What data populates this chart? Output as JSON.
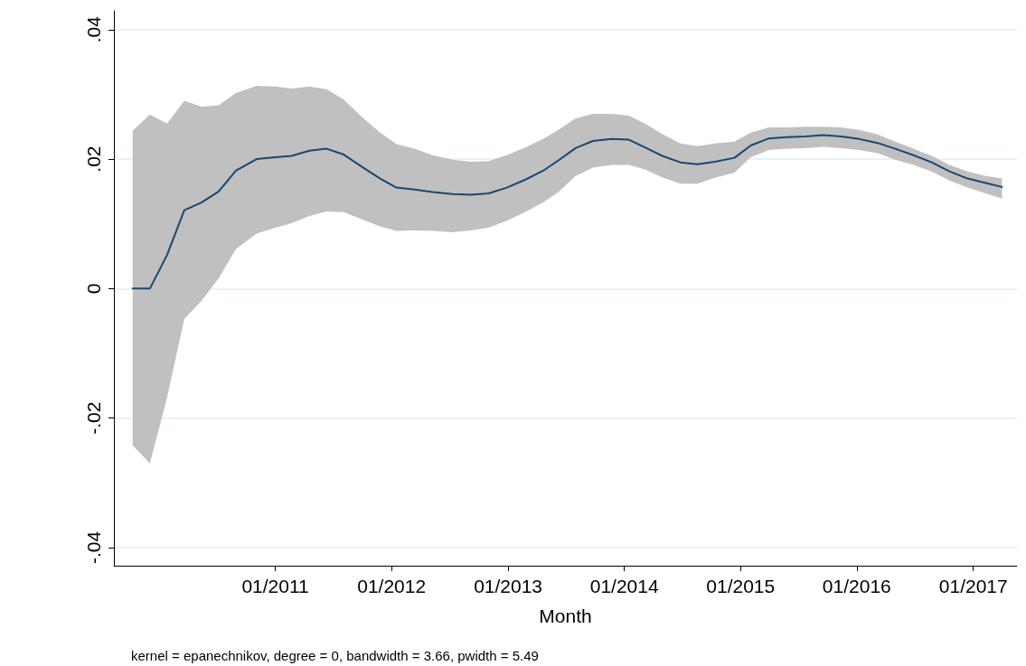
{
  "chart_data": {
    "type": "line",
    "xlabel": "Month",
    "annotations": [
      "kernel = epanechnikov, degree = 0, bandwidth = 3.66, pwidth = 5.49"
    ],
    "x": [
      "2009-10-10",
      "2009-12-03",
      "2010-01-26",
      "2010-03-21",
      "2010-05-14",
      "2010-07-07",
      "2010-08-30",
      "2010-11-03",
      "2011-01-01",
      "2011-02-21",
      "2011-04-18",
      "2011-06-11",
      "2011-08-04",
      "2011-09-30",
      "2011-11-26",
      "2012-01-16",
      "2012-03-13",
      "2012-05-09",
      "2012-07-11",
      "2012-09-06",
      "2012-11-01",
      "2012-12-28",
      "2013-02-23",
      "2013-04-21",
      "2013-06-08",
      "2013-08-01",
      "2013-09-24",
      "2013-11-22",
      "2014-01-15",
      "2014-03-07",
      "2014-04-30",
      "2014-06-26",
      "2014-08-19",
      "2014-10-12",
      "2014-12-13",
      "2015-02-02",
      "2015-03-31",
      "2015-05-27",
      "2015-07-23",
      "2015-09-18",
      "2015-11-13",
      "2016-01-09",
      "2016-03-06",
      "2016-05-01",
      "2016-06-27",
      "2016-08-23",
      "2016-10-18",
      "2016-12-14",
      "2017-02-09",
      "2017-04-01"
    ],
    "series": [
      {
        "color": "#1a476f",
        "values": [
          0,
          0,
          0.0052,
          0.0121,
          0.0133,
          0.015,
          0.0182,
          0.02,
          0.0203,
          0.0205,
          0.0213,
          0.0216,
          0.0207,
          0.0188,
          0.017,
          0.0156,
          0.0153,
          0.0149,
          0.0146,
          0.0145,
          0.0147,
          0.0156,
          0.0168,
          0.0182,
          0.0198,
          0.0217,
          0.0228,
          0.0231,
          0.023,
          0.0218,
          0.0205,
          0.0195,
          0.0192,
          0.0196,
          0.0202,
          0.0221,
          0.0232,
          0.0234,
          0.0235,
          0.0237,
          0.0235,
          0.0231,
          0.0225,
          0.0216,
          0.0206,
          0.0195,
          0.0181,
          0.017,
          0.0163,
          0.0157
        ],
        "upper": [
          0.0244,
          0.0269,
          0.0255,
          0.029,
          0.0281,
          0.0283,
          0.0302,
          0.0313,
          0.0312,
          0.0309,
          0.0312,
          0.0308,
          0.0292,
          0.0265,
          0.0241,
          0.0223,
          0.0216,
          0.0206,
          0.0199,
          0.0196,
          0.0197,
          0.0206,
          0.0218,
          0.0231,
          0.0245,
          0.0263,
          0.027,
          0.027,
          0.0267,
          0.0255,
          0.0239,
          0.0224,
          0.022,
          0.0224,
          0.0227,
          0.0241,
          0.0249,
          0.0249,
          0.025,
          0.025,
          0.0249,
          0.0245,
          0.0238,
          0.0227,
          0.0216,
          0.0205,
          0.0191,
          0.0181,
          0.0174,
          0.017
        ],
        "lower": [
          -0.0242,
          -0.027,
          -0.0168,
          -0.0047,
          -0.0019,
          0.0016,
          0.0061,
          0.0085,
          0.0094,
          0.0101,
          0.0112,
          0.0119,
          0.0118,
          0.0107,
          0.0096,
          0.0089,
          0.009,
          0.0089,
          0.0087,
          0.009,
          0.0094,
          0.0105,
          0.0118,
          0.0133,
          0.0149,
          0.0174,
          0.0187,
          0.0191,
          0.0191,
          0.0184,
          0.0172,
          0.0162,
          0.0162,
          0.0171,
          0.0179,
          0.0203,
          0.0214,
          0.0216,
          0.0217,
          0.0219,
          0.0217,
          0.0214,
          0.0209,
          0.0199,
          0.0191,
          0.0181,
          0.0167,
          0.0156,
          0.0147,
          0.0139
        ]
      }
    ],
    "xlim": [
      "2009-08-12",
      "2017-05-18"
    ],
    "xticks": [
      {
        "value": "2011-01-01",
        "label": "01/2011"
      },
      {
        "value": "2012-01-01",
        "label": "01/2012"
      },
      {
        "value": "2013-01-01",
        "label": "01/2013"
      },
      {
        "value": "2014-01-01",
        "label": "01/2014"
      },
      {
        "value": "2015-01-01",
        "label": "01/2015"
      },
      {
        "value": "2016-01-01",
        "label": "01/2016"
      },
      {
        "value": "2017-01-01",
        "label": "01/2017"
      }
    ],
    "ylim": [
      -0.0428,
      0.0429
    ],
    "yticks": [
      {
        "value": -0.04,
        "label": "-.04"
      },
      {
        "value": -0.02,
        "label": "-.02"
      },
      {
        "value": 0,
        "label": "0"
      },
      {
        "value": 0.02,
        "label": ".02"
      },
      {
        "value": 0.04,
        "label": ".04"
      }
    ],
    "grid": "y",
    "marker": "none",
    "line_style": "solid"
  }
}
